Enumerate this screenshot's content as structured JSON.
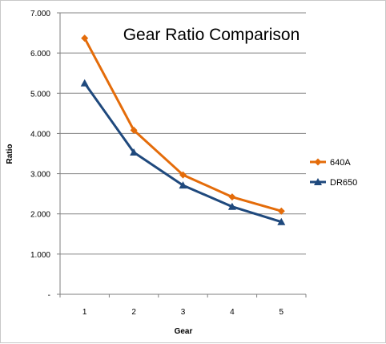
{
  "chart_data": {
    "type": "line",
    "title": "Gear Ratio Comparison",
    "xlabel": "Gear",
    "ylabel": "Ratio",
    "categories": [
      "1",
      "2",
      "3",
      "4",
      "5"
    ],
    "ylim": [
      0,
      7
    ],
    "yticks": [
      0,
      1,
      2,
      3,
      4,
      5,
      6,
      7
    ],
    "ytick_labels": [
      "-",
      "1.000",
      "2.000",
      "3.000",
      "4.000",
      "5.000",
      "6.000",
      "7.000"
    ],
    "grid": true,
    "legend_position": "right",
    "series": [
      {
        "name": "640A",
        "color": "#e46c0a",
        "marker": "diamond",
        "values": [
          6.37,
          4.08,
          2.97,
          2.42,
          2.07
        ]
      },
      {
        "name": "DR650",
        "color": "#1f497d",
        "marker": "triangle",
        "values": [
          5.25,
          3.53,
          2.71,
          2.18,
          1.8
        ]
      }
    ]
  }
}
